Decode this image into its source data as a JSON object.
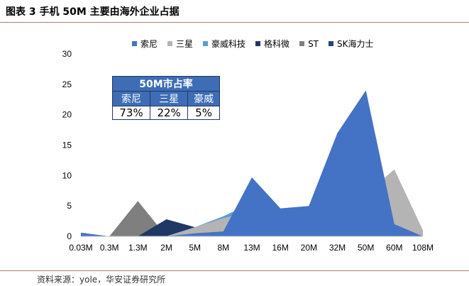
{
  "figure": {
    "title": "图表 3  手机 50M 主要由海外企业占据",
    "source": "资料来源：yole，华安证券研究所"
  },
  "chart_data": {
    "type": "area",
    "title": "",
    "xlabel": "",
    "ylabel": "",
    "ylim": [
      0,
      30
    ],
    "yticks": [
      "0",
      "5",
      "10",
      "15",
      "20",
      "25",
      "30"
    ],
    "categories": [
      "0.03M",
      "0.3M",
      "1.3M",
      "2M",
      "5M",
      "8M",
      "13M",
      "16M",
      "20M",
      "32M",
      "50M",
      "60M",
      "108M"
    ],
    "legend_position": "top",
    "series": [
      {
        "name": "索尼",
        "color": "#4472c4",
        "values": [
          0.6,
          0,
          0,
          0,
          0.5,
          0.8,
          9.7,
          4.6,
          5,
          17,
          24,
          2,
          0
        ]
      },
      {
        "name": "三星",
        "color": "#b4b4b4",
        "values": [
          0,
          0,
          0,
          0,
          1.5,
          3,
          4,
          3,
          3.3,
          5,
          7,
          11,
          1
        ]
      },
      {
        "name": "豪威科技",
        "color": "#5b9bd5",
        "values": [
          0,
          0,
          0,
          0,
          1.5,
          3.3,
          5.5,
          1.8,
          1,
          2.4,
          1.5,
          0,
          0
        ]
      },
      {
        "name": "格科微",
        "color": "#1f3864",
        "values": [
          0,
          0,
          0,
          2.8,
          1.5,
          1.6,
          0,
          0,
          0,
          0,
          0,
          0,
          0
        ]
      },
      {
        "name": "ST",
        "color": "#7f7f7f",
        "values": [
          0,
          0,
          5.8,
          0,
          0,
          0,
          0,
          0,
          0,
          0,
          0,
          0,
          0
        ]
      },
      {
        "name": "SK海力士",
        "color": "#264478",
        "values": [
          0,
          0,
          0,
          0,
          0,
          0,
          0,
          0,
          0,
          0,
          0,
          0,
          0
        ]
      }
    ],
    "inset_table": {
      "title": "50M市占率",
      "headers": [
        "索尼",
        "三星",
        "豪威"
      ],
      "values": [
        "73%",
        "22%",
        "5%"
      ]
    }
  }
}
